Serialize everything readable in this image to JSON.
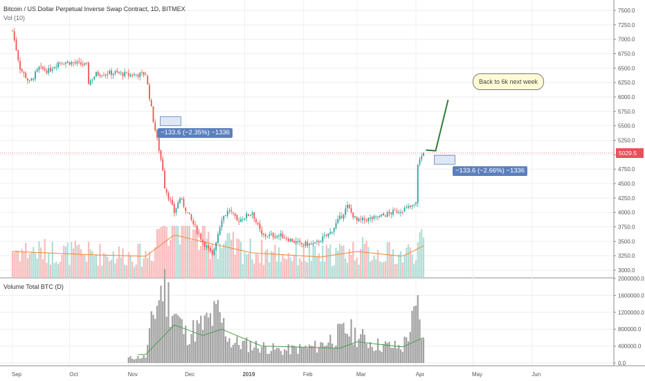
{
  "chart_title": "Bitcoin / US Dollar Perpetual Inverse Swap Contract, 1D, BITMEX",
  "volume_overlay_label": "Vol (10)",
  "pane2_title": "Volume Total BTC (D)",
  "annotation_text": "Back to 6k next week",
  "measure_labels": [
    "−133.6 (−2.35%) −1336",
    "−133.6 (−2.66%) −1336"
  ],
  "last_price_label": "5029.5",
  "colors": {
    "up": "#26a69a",
    "down": "#ef5350",
    "vol_up": "#a8d8d0",
    "vol_down": "#f7b4b4",
    "ma": "#f0892e",
    "pane2_bar": "#a0a0a0",
    "pane2_ma": "#43a047",
    "accent": "#5b7fbd",
    "callout_bg": "#fffbd4",
    "arrow": "#2e7d32",
    "price_line": "#e8505b"
  },
  "chart_data": [
    {
      "type": "candlestick",
      "x_axis_labels": [
        "Sep",
        "Oct",
        "Nov",
        "Dec",
        "2019",
        "Feb",
        "Mar",
        "Apr",
        "May",
        "Jun"
      ],
      "y_tick_labels": [
        "3000.0",
        "3250.0",
        "3500.0",
        "3750.0",
        "4000.0",
        "4250.0",
        "4500.0",
        "4750.0",
        "5000.0",
        "5250.0",
        "5500.0",
        "5750.0",
        "6000.0",
        "6250.0",
        "6500.0",
        "6750.0",
        "7000.0",
        "7250.0",
        "7500.0"
      ],
      "ylim": [
        3000,
        7500
      ],
      "last_price": 5029.5,
      "closes_by_date": [
        {
          "date": "2018-09-01",
          "close": 7150
        },
        {
          "date": "2018-09-05",
          "close": 6500
        },
        {
          "date": "2018-09-10",
          "close": 6250
        },
        {
          "date": "2018-09-15",
          "close": 6500
        },
        {
          "date": "2018-09-20",
          "close": 6450
        },
        {
          "date": "2018-09-25",
          "close": 6600
        },
        {
          "date": "2018-10-01",
          "close": 6600
        },
        {
          "date": "2018-10-10",
          "close": 6550
        },
        {
          "date": "2018-10-11",
          "close": 6250
        },
        {
          "date": "2018-10-15",
          "close": 6400
        },
        {
          "date": "2018-10-25",
          "close": 6420
        },
        {
          "date": "2018-11-01",
          "close": 6380
        },
        {
          "date": "2018-11-10",
          "close": 6400
        },
        {
          "date": "2018-11-14",
          "close": 5600
        },
        {
          "date": "2018-11-19",
          "close": 4750
        },
        {
          "date": "2018-11-20",
          "close": 4450
        },
        {
          "date": "2018-11-25",
          "close": 4000
        },
        {
          "date": "2018-11-28",
          "close": 4250
        },
        {
          "date": "2018-12-05",
          "close": 3800
        },
        {
          "date": "2018-12-10",
          "close": 3500
        },
        {
          "date": "2018-12-15",
          "close": 3250
        },
        {
          "date": "2018-12-20",
          "close": 3900
        },
        {
          "date": "2018-12-24",
          "close": 4050
        },
        {
          "date": "2018-12-28",
          "close": 3850
        },
        {
          "date": "2019-01-05",
          "close": 4000
        },
        {
          "date": "2019-01-10",
          "close": 3600
        },
        {
          "date": "2019-01-20",
          "close": 3600
        },
        {
          "date": "2019-01-30",
          "close": 3450
        },
        {
          "date": "2019-02-07",
          "close": 3450
        },
        {
          "date": "2019-02-15",
          "close": 3650
        },
        {
          "date": "2019-02-24",
          "close": 4100
        },
        {
          "date": "2019-03-01",
          "close": 3850
        },
        {
          "date": "2019-03-10",
          "close": 3900
        },
        {
          "date": "2019-03-20",
          "close": 4000
        },
        {
          "date": "2019-03-30",
          "close": 4100
        },
        {
          "date": "2019-04-01",
          "close": 4150
        },
        {
          "date": "2019-04-02",
          "close": 4850
        },
        {
          "date": "2019-04-05",
          "close": 5029.5
        }
      ],
      "volume_overlay_ma": [
        {
          "date": "2018-09-01",
          "value": 380
        },
        {
          "date": "2018-10-15",
          "value": 330
        },
        {
          "date": "2018-11-10",
          "value": 310
        },
        {
          "date": "2018-11-25",
          "value": 620
        },
        {
          "date": "2018-12-10",
          "value": 520
        },
        {
          "date": "2019-01-05",
          "value": 360
        },
        {
          "date": "2019-02-10",
          "value": 300
        },
        {
          "date": "2019-03-01",
          "value": 380
        },
        {
          "date": "2019-03-25",
          "value": 310
        },
        {
          "date": "2019-04-05",
          "value": 460
        }
      ]
    },
    {
      "type": "bar",
      "title": "Volume Total BTC (D)",
      "y_tick_labels": [
        "0.0",
        "400000.0",
        "800000.0",
        "1200000.0",
        "1600000.0",
        "2000000.0"
      ],
      "ylim": [
        0,
        2000000
      ],
      "values_by_date": [
        {
          "date": "2018-11-01",
          "value": 120000
        },
        {
          "date": "2018-11-10",
          "value": 150000
        },
        {
          "date": "2018-11-14",
          "value": 1150000
        },
        {
          "date": "2018-11-19",
          "value": 1900000
        },
        {
          "date": "2018-11-25",
          "value": 1250000
        },
        {
          "date": "2018-12-01",
          "value": 700000
        },
        {
          "date": "2018-12-10",
          "value": 900000
        },
        {
          "date": "2018-12-18",
          "value": 1200000
        },
        {
          "date": "2018-12-25",
          "value": 500000
        },
        {
          "date": "2019-01-10",
          "value": 400000
        },
        {
          "date": "2019-01-20",
          "value": 300000
        },
        {
          "date": "2019-02-08",
          "value": 400000
        },
        {
          "date": "2019-02-24",
          "value": 800000
        },
        {
          "date": "2019-03-10",
          "value": 450000
        },
        {
          "date": "2019-03-25",
          "value": 380000
        },
        {
          "date": "2019-04-02",
          "value": 1300000
        },
        {
          "date": "2019-04-05",
          "value": 500000
        }
      ],
      "ma_by_date": [
        {
          "date": "2018-11-10",
          "value": 200000
        },
        {
          "date": "2018-11-25",
          "value": 900000
        },
        {
          "date": "2018-12-10",
          "value": 650000
        },
        {
          "date": "2018-12-20",
          "value": 800000
        },
        {
          "date": "2019-01-10",
          "value": 400000
        },
        {
          "date": "2019-02-20",
          "value": 350000
        },
        {
          "date": "2019-03-01",
          "value": 500000
        },
        {
          "date": "2019-03-25",
          "value": 380000
        },
        {
          "date": "2019-04-05",
          "value": 600000
        }
      ]
    }
  ]
}
